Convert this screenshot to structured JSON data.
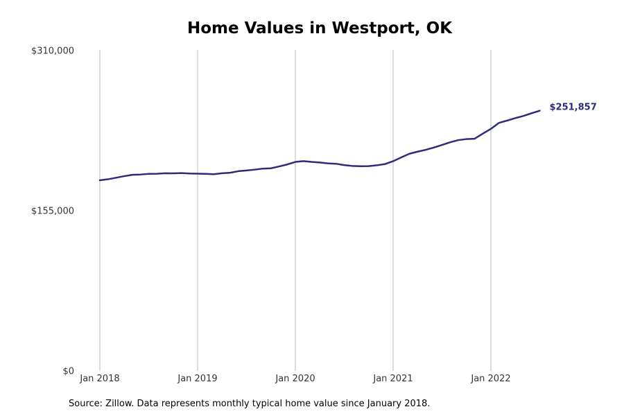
{
  "chart_data": {
    "type": "line",
    "title": "Home Values in Westport, OK",
    "xlabel": "",
    "ylabel": "",
    "x_start": "2018-01",
    "x_ticks": [
      {
        "label": "Jan 2018",
        "value": "2018-01"
      },
      {
        "label": "Jan 2019",
        "value": "2019-01"
      },
      {
        "label": "Jan 2020",
        "value": "2020-01"
      },
      {
        "label": "Jan 2021",
        "value": "2021-01"
      },
      {
        "label": "Jan 2022",
        "value": "2022-01"
      }
    ],
    "y_ticks": [
      {
        "label": "$0",
        "value": 0
      },
      {
        "label": "$155,000",
        "value": 155000
      },
      {
        "label": "$310,000",
        "value": 310000
      }
    ],
    "ylim": [
      0,
      310000
    ],
    "grid": "vertical",
    "series": [
      {
        "color": "#2e2a7c",
        "x": [
          "2018-01",
          "2018-02",
          "2018-03",
          "2018-04",
          "2018-05",
          "2018-06",
          "2018-07",
          "2018-08",
          "2018-09",
          "2018-10",
          "2018-11",
          "2018-12",
          "2019-01",
          "2019-02",
          "2019-03",
          "2019-04",
          "2019-05",
          "2019-06",
          "2019-07",
          "2019-08",
          "2019-09",
          "2019-10",
          "2019-11",
          "2019-12",
          "2020-01",
          "2020-02",
          "2020-03",
          "2020-04",
          "2020-05",
          "2020-06",
          "2020-07",
          "2020-08",
          "2020-09",
          "2020-10",
          "2020-11",
          "2020-12",
          "2021-01",
          "2021-02",
          "2021-03",
          "2021-04",
          "2021-05",
          "2021-06",
          "2021-07",
          "2021-08",
          "2021-09",
          "2021-10",
          "2021-11",
          "2021-12",
          "2022-01",
          "2022-02",
          "2022-03",
          "2022-04",
          "2022-05",
          "2022-06",
          "2022-07"
        ],
        "values": [
          184500,
          185500,
          187000,
          188500,
          189800,
          190100,
          190700,
          190800,
          191300,
          191200,
          191500,
          191100,
          190900,
          190700,
          190400,
          191300,
          191800,
          193300,
          194000,
          194800,
          195800,
          196100,
          197900,
          199800,
          202300,
          203100,
          202300,
          201700,
          200900,
          200500,
          199200,
          198400,
          198100,
          198200,
          199000,
          200200,
          203000,
          206700,
          210200,
          212200,
          214000,
          216200,
          218700,
          221300,
          223400,
          224400,
          224700,
          229600,
          234300,
          240100,
          242300,
          244700,
          246800,
          249400,
          251857
        ]
      }
    ],
    "end_label": "$251,857",
    "source": "Source: Zillow. Data represents monthly typical home value since January 2018."
  }
}
